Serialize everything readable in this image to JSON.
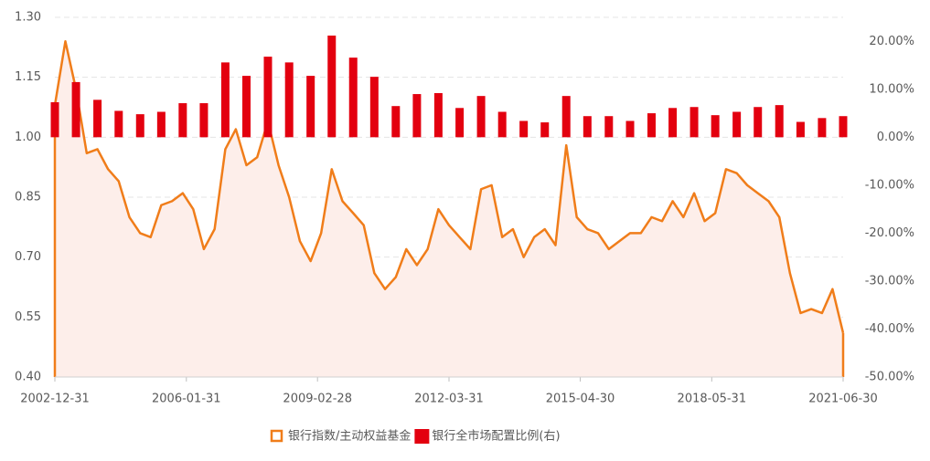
{
  "chart_data": {
    "type": "combo",
    "xlim": [
      "2002-12-31",
      "2021-06-30"
    ],
    "xticks": [
      "2002-12-31",
      "2006-01-31",
      "2009-02-28",
      "2012-03-31",
      "2015-04-30",
      "2018-05-31",
      "2021-06-30"
    ],
    "ylim": [
      0.4,
      1.3
    ],
    "yticks": [
      {
        "value": 0.4,
        "label": "0.40"
      },
      0.55,
      {
        "value": 0.7,
        "label": "0.70"
      },
      0.85,
      {
        "value": 1.0,
        "label": "1.00"
      },
      1.15,
      {
        "value": 1.3,
        "label": "1.30"
      }
    ],
    "y2lim": [
      -50,
      25
    ],
    "y2ticks": [
      {
        "value": -50,
        "label": "-50.00%"
      },
      {
        "value": -40,
        "label": "-40.00%"
      },
      {
        "value": -30,
        "label": "-30.00%"
      },
      {
        "value": -20,
        "label": "-20.00%"
      },
      {
        "value": -10,
        "label": "-10.00%"
      },
      {
        "value": 0,
        "label": "0.00%"
      },
      {
        "value": 10,
        "label": "10.00%"
      },
      {
        "value": 20,
        "label": "20.00%"
      }
    ],
    "grid": true,
    "legend": "bottom",
    "series": [
      {
        "name": "银行指数/主动权益基金",
        "type": "line",
        "color": "#f07d1a",
        "area_color": "#fdeeea",
        "x": [
          "2002-12-31",
          "2003-03-31",
          "2003-06-30",
          "2003-09-30",
          "2003-12-31",
          "2004-03-31",
          "2004-06-30",
          "2004-09-30",
          "2004-12-31",
          "2005-03-31",
          "2005-06-30",
          "2005-09-30",
          "2005-12-31",
          "2006-03-31",
          "2006-06-30",
          "2006-09-30",
          "2006-12-31",
          "2007-03-31",
          "2007-06-30",
          "2007-09-30",
          "2007-12-31",
          "2008-03-31",
          "2008-06-30",
          "2008-09-30",
          "2008-12-31",
          "2009-03-31",
          "2009-06-30",
          "2009-09-30",
          "2009-12-31",
          "2010-03-31",
          "2010-06-30",
          "2010-09-30",
          "2010-12-31",
          "2011-03-31",
          "2011-06-30",
          "2011-09-30",
          "2011-12-31",
          "2012-03-31",
          "2012-06-30",
          "2012-09-30",
          "2012-12-31",
          "2013-03-31",
          "2013-06-30",
          "2013-09-30",
          "2013-12-31",
          "2014-03-31",
          "2014-06-30",
          "2014-09-30",
          "2014-12-31",
          "2015-03-31",
          "2015-06-30",
          "2015-09-30",
          "2015-12-31",
          "2016-03-31",
          "2016-06-30",
          "2016-09-30",
          "2016-12-31",
          "2017-03-31",
          "2017-06-30",
          "2017-09-30",
          "2017-12-31",
          "2018-03-31",
          "2018-06-30",
          "2018-09-30",
          "2018-12-31",
          "2019-03-31",
          "2019-06-30",
          "2019-09-30",
          "2019-12-31",
          "2020-03-31",
          "2020-06-30",
          "2020-09-30",
          "2020-12-31",
          "2021-03-31",
          "2021-06-30"
        ],
        "values": [
          1.08,
          1.24,
          1.12,
          0.96,
          0.97,
          0.92,
          0.89,
          0.8,
          0.76,
          0.75,
          0.83,
          0.84,
          0.86,
          0.82,
          0.72,
          0.77,
          0.97,
          1.02,
          0.93,
          0.95,
          1.04,
          0.93,
          0.85,
          0.74,
          0.69,
          0.76,
          0.92,
          0.84,
          0.81,
          0.78,
          0.66,
          0.62,
          0.65,
          0.72,
          0.68,
          0.72,
          0.82,
          0.78,
          0.75,
          0.72,
          0.87,
          0.88,
          0.75,
          0.77,
          0.7,
          0.75,
          0.77,
          0.73,
          0.98,
          0.8,
          0.77,
          0.76,
          0.72,
          0.74,
          0.76,
          0.76,
          0.8,
          0.79,
          0.84,
          0.8,
          0.86,
          0.79,
          0.81,
          0.92,
          0.91,
          0.88,
          0.86,
          0.84,
          0.8,
          0.66,
          0.56,
          0.57,
          0.56,
          0.62,
          0.51
        ]
      },
      {
        "name": "银行全市场配置比例(右)",
        "type": "bar",
        "axis": "y2",
        "color": "#e3000f",
        "x": [
          "2002-12-31",
          "2003-06-30",
          "2003-12-31",
          "2004-06-30",
          "2004-12-31",
          "2005-06-30",
          "2005-12-31",
          "2006-06-30",
          "2006-12-31",
          "2007-06-30",
          "2007-12-31",
          "2008-06-30",
          "2008-12-31",
          "2009-06-30",
          "2009-12-31",
          "2010-06-30",
          "2010-12-31",
          "2011-06-30",
          "2011-12-31",
          "2012-06-30",
          "2012-12-31",
          "2013-06-30",
          "2013-12-31",
          "2014-06-30",
          "2014-12-31",
          "2015-06-30",
          "2015-12-31",
          "2016-06-30",
          "2016-12-31",
          "2017-06-30",
          "2017-12-31",
          "2018-06-30",
          "2018-12-31",
          "2019-06-30",
          "2019-12-31",
          "2020-06-30",
          "2020-12-31",
          "2021-06-30"
        ],
        "values": [
          7.3,
          11.5,
          7.8,
          5.5,
          4.8,
          5.3,
          7.1,
          7.1,
          15.6,
          12.8,
          16.8,
          15.6,
          12.8,
          21.2,
          16.6,
          12.6,
          6.5,
          9.0,
          9.2,
          6.1,
          8.6,
          5.3,
          3.4,
          3.1,
          8.6,
          4.4,
          4.4,
          3.4,
          5.0,
          6.1,
          6.3,
          4.6,
          5.3,
          6.3,
          6.7,
          3.2,
          4.0,
          4.4
        ]
      }
    ]
  }
}
